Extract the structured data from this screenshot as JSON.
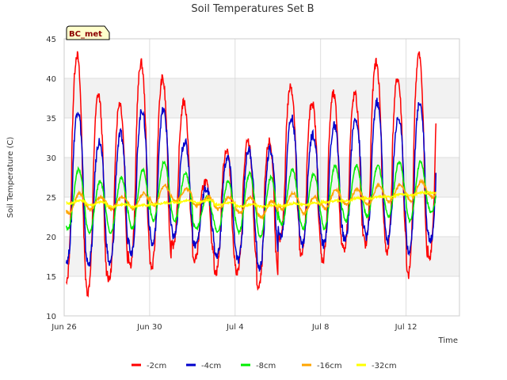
{
  "chart_data": {
    "type": "line",
    "title": "Soil Temperatures Set B",
    "xlabel": "Time",
    "ylabel": "Soil Temperature (C)",
    "annotation": "BC_met",
    "ylim": [
      10,
      45
    ],
    "xlim": [
      0,
      18.5
    ],
    "yticks": [
      10,
      15,
      20,
      25,
      30,
      35,
      40,
      45
    ],
    "xticks": [
      {
        "value": 0,
        "label": "Jun 26"
      },
      {
        "value": 4,
        "label": "Jun 30"
      },
      {
        "value": 8,
        "label": "Jul 4"
      },
      {
        "value": 12,
        "label": "Jul 8"
      },
      {
        "value": 16,
        "label": "Jul 12"
      }
    ],
    "grid": true,
    "legend_position": "bottom",
    "x_unit": "days since Jun 26",
    "series": [
      {
        "name": "-2cm",
        "color": "#ff0000",
        "mins": [
          14,
          13,
          14.5,
          16.5,
          16,
          19,
          17,
          15.5,
          15.5,
          13.5,
          19.5,
          17.5,
          17,
          18.5,
          19,
          18,
          15,
          17.5
        ],
        "maxs": [
          43,
          38,
          37,
          42,
          40,
          37,
          27,
          31,
          32,
          32,
          39,
          37,
          38,
          38,
          42,
          40,
          43,
          40.5
        ]
      },
      {
        "name": "-4cm",
        "color": "#0000cc",
        "mins": [
          17,
          16.5,
          16.5,
          18,
          19,
          20,
          19,
          17.5,
          17,
          16,
          20,
          19,
          19,
          19.5,
          20,
          19.5,
          18,
          19.5
        ],
        "maxs": [
          36,
          32,
          33,
          36,
          36,
          32,
          26,
          30,
          31,
          31,
          35,
          33,
          34,
          35,
          37,
          35,
          37,
          35.5
        ]
      },
      {
        "name": "-8cm",
        "color": "#00ee00",
        "mins": [
          21,
          20.5,
          20.5,
          21,
          22,
          22,
          21,
          20.5,
          20.5,
          20,
          21.5,
          21,
          21,
          22,
          22.5,
          22.5,
          22,
          23
        ],
        "maxs": [
          28.5,
          27,
          27.5,
          28.5,
          29.5,
          28,
          25,
          27,
          28,
          27.5,
          28.5,
          28,
          29,
          29,
          29,
          29.5,
          29.5,
          28.5
        ]
      },
      {
        "name": "-16cm",
        "color": "#ffa500",
        "mins": [
          23,
          23.5,
          23.5,
          23.5,
          24,
          24.5,
          24,
          23.5,
          23,
          22.5,
          23.5,
          23,
          23.5,
          24,
          24,
          24.5,
          24.5,
          25
        ],
        "maxs": [
          25.5,
          25,
          25,
          25.5,
          26.5,
          26,
          25,
          25,
          25,
          24.5,
          25.5,
          25,
          26,
          26,
          26.5,
          26.5,
          27,
          26.5
        ]
      },
      {
        "name": "-32cm",
        "color": "#ffff00",
        "mins": [
          24.2,
          24.0,
          23.8,
          23.8,
          24.0,
          24.3,
          24.3,
          24.0,
          23.8,
          23.8,
          23.9,
          24.0,
          24.3,
          24.5,
          24.8,
          25.0,
          25.2,
          25.5
        ],
        "maxs": [
          24.6,
          24.4,
          24.1,
          24.0,
          24.3,
          24.6,
          24.6,
          24.3,
          24.1,
          24.0,
          24.2,
          24.3,
          24.6,
          24.9,
          25.1,
          25.4,
          25.6,
          25.9
        ]
      }
    ]
  }
}
